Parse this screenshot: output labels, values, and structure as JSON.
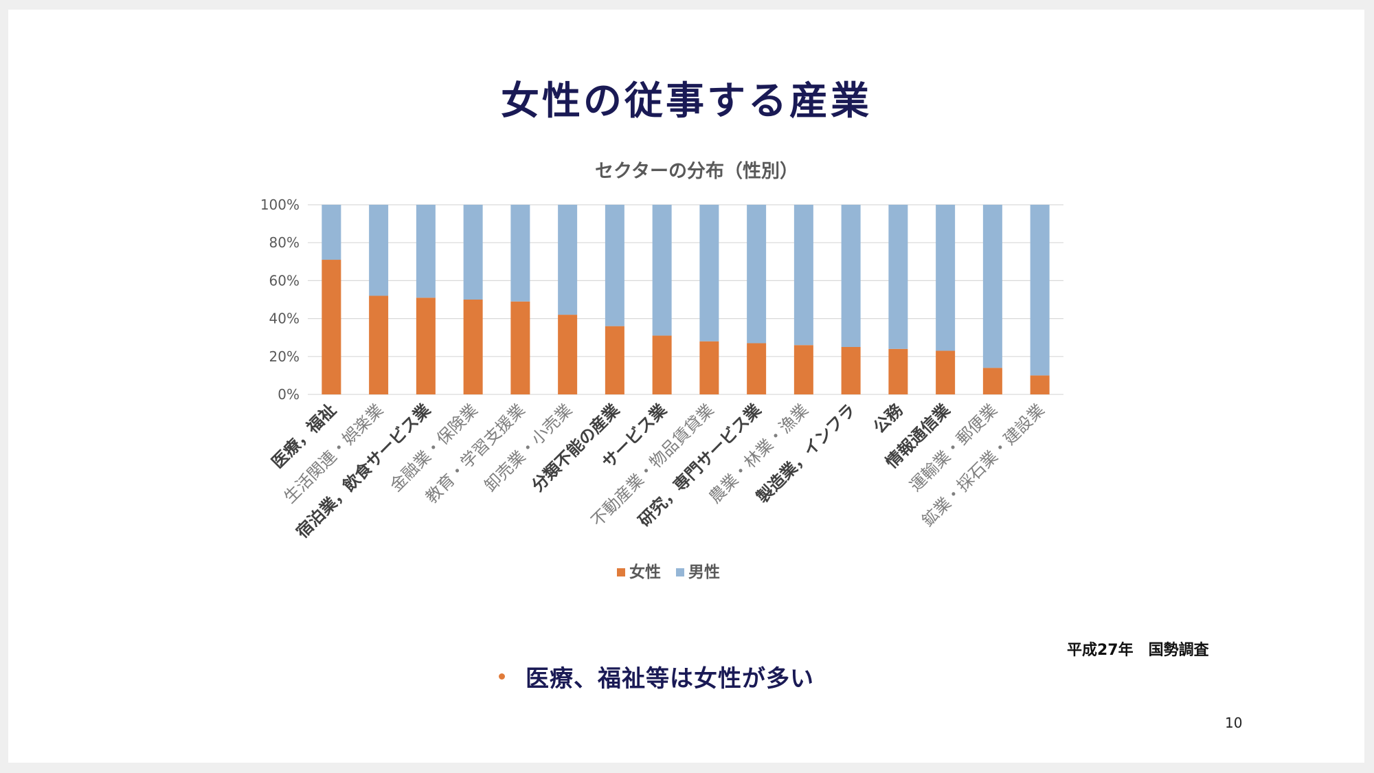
{
  "slide": {
    "title": "女性の従事する産業",
    "source_note": "平成27年　国勢調査",
    "bullet": "医療、福祉等は女性が多い",
    "page_number": "10"
  },
  "colors": {
    "female": "#e07b3a",
    "male": "#95b6d6",
    "title": "#1a1a55",
    "gridline": "#d9d9d9",
    "axis_text": "#595959"
  },
  "chart_data": {
    "type": "bar",
    "stacked": "percent",
    "title": "セクターの分布（性別）",
    "xlabel": "",
    "ylabel": "",
    "ylim": [
      0,
      100
    ],
    "yticks": [
      "0%",
      "20%",
      "40%",
      "60%",
      "80%",
      "100%"
    ],
    "grid": true,
    "legend": "bottom",
    "categories": [
      {
        "label": "医療，福祉",
        "bold": true
      },
      {
        "label": "生活関連・娯楽業",
        "bold": false
      },
      {
        "label": "宿泊業，飲食サービス業",
        "bold": true
      },
      {
        "label": "金融業・保険業",
        "bold": false
      },
      {
        "label": "教育・学習支援業",
        "bold": false
      },
      {
        "label": "卸売業・小売業",
        "bold": false
      },
      {
        "label": "分類不能の産業",
        "bold": true
      },
      {
        "label": "サービス業",
        "bold": true
      },
      {
        "label": "不動産業・物品賃貸業",
        "bold": false
      },
      {
        "label": "研究，専門サービス業",
        "bold": true
      },
      {
        "label": "農業・林業・漁業",
        "bold": false
      },
      {
        "label": "製造業，インフラ",
        "bold": true
      },
      {
        "label": "公務",
        "bold": true
      },
      {
        "label": "情報通信業",
        "bold": true
      },
      {
        "label": "運輸業・郵便業",
        "bold": false
      },
      {
        "label": "鉱業・採石業・建設業",
        "bold": false
      }
    ],
    "series": [
      {
        "name": "女性",
        "values": [
          71,
          52,
          51,
          50,
          49,
          42,
          36,
          31,
          28,
          27,
          26,
          25,
          24,
          23,
          14,
          10
        ]
      },
      {
        "name": "男性",
        "values": [
          29,
          48,
          49,
          50,
          51,
          58,
          64,
          69,
          72,
          73,
          74,
          75,
          76,
          77,
          86,
          90
        ]
      }
    ]
  }
}
